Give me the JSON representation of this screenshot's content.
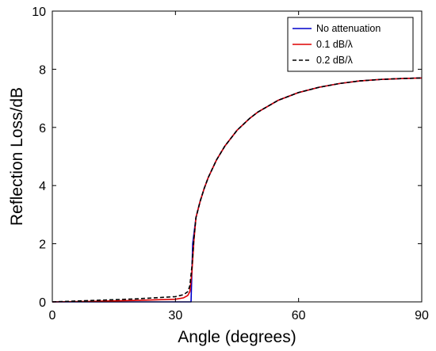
{
  "chart_data": {
    "type": "line",
    "title": "",
    "xlabel": "Angle (degrees)",
    "ylabel": "Reflection Loss/dB",
    "xlim": [
      0,
      90
    ],
    "ylim": [
      0,
      10
    ],
    "xticks": [
      0,
      30,
      60,
      90
    ],
    "yticks": [
      0,
      2,
      4,
      6,
      8,
      10
    ],
    "grid": false,
    "legend_position": "top-right",
    "series": [
      {
        "name": "No attenuation",
        "color": "#0000cc",
        "style": "solid",
        "x": [
          0,
          10,
          20,
          30,
          33,
          33.8,
          34.2,
          35,
          36,
          37,
          38,
          40,
          42,
          45,
          48,
          50,
          55,
          60,
          65,
          70,
          75,
          80,
          85,
          90
        ],
        "y": [
          0,
          0,
          0,
          0,
          0,
          0,
          2.0,
          2.9,
          3.45,
          3.9,
          4.28,
          4.88,
          5.35,
          5.9,
          6.3,
          6.52,
          6.93,
          7.2,
          7.38,
          7.51,
          7.6,
          7.65,
          7.68,
          7.7
        ]
      },
      {
        "name": "0.1 dB/λ",
        "color": "#dd0000",
        "style": "solid",
        "x": [
          0,
          10,
          20,
          30,
          32,
          33,
          33.5,
          34,
          34.5,
          35,
          36,
          37,
          38,
          40,
          42,
          45,
          48,
          50,
          55,
          60,
          65,
          70,
          75,
          80,
          85,
          90
        ],
        "y": [
          0,
          0.02,
          0.05,
          0.09,
          0.14,
          0.22,
          0.35,
          1.0,
          2.1,
          2.9,
          3.45,
          3.9,
          4.28,
          4.88,
          5.35,
          5.9,
          6.3,
          6.52,
          6.93,
          7.2,
          7.38,
          7.51,
          7.6,
          7.65,
          7.68,
          7.7
        ]
      },
      {
        "name": "0.2 dB/λ",
        "color": "#000000",
        "style": "dashed",
        "x": [
          0,
          10,
          20,
          30,
          32,
          33,
          33.5,
          34,
          34.5,
          35,
          36,
          37,
          38,
          40,
          42,
          45,
          48,
          50,
          55,
          60,
          65,
          70,
          75,
          80,
          85,
          90
        ],
        "y": [
          0,
          0.05,
          0.1,
          0.18,
          0.25,
          0.35,
          0.55,
          1.2,
          2.2,
          2.9,
          3.45,
          3.9,
          4.28,
          4.88,
          5.35,
          5.9,
          6.3,
          6.52,
          6.93,
          7.2,
          7.38,
          7.51,
          7.6,
          7.65,
          7.68,
          7.7
        ]
      }
    ]
  }
}
